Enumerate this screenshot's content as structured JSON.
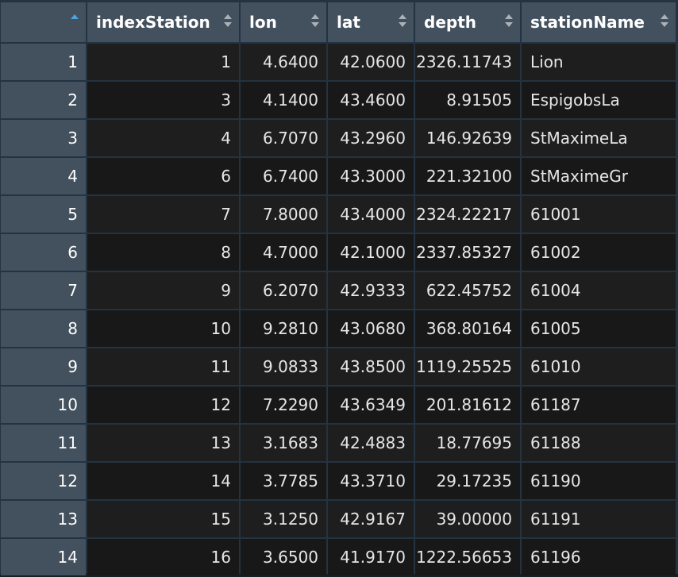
{
  "table": {
    "columns": [
      {
        "key": "rownum",
        "label": "",
        "sorted": "asc"
      },
      {
        "key": "indexStation",
        "label": "indexStation"
      },
      {
        "key": "lon",
        "label": "lon"
      },
      {
        "key": "lat",
        "label": "lat"
      },
      {
        "key": "depth",
        "label": "depth"
      },
      {
        "key": "stationName",
        "label": "stationName"
      }
    ],
    "rows": [
      {
        "rownum": "1",
        "indexStation": "1",
        "lon": "4.6400",
        "lat": "42.0600",
        "depth": "2326.11743",
        "stationName": "Lion"
      },
      {
        "rownum": "2",
        "indexStation": "3",
        "lon": "4.1400",
        "lat": "43.4600",
        "depth": "8.91505",
        "stationName": "EspigobsLa"
      },
      {
        "rownum": "3",
        "indexStation": "4",
        "lon": "6.7070",
        "lat": "43.2960",
        "depth": "146.92639",
        "stationName": "StMaximeLa"
      },
      {
        "rownum": "4",
        "indexStation": "6",
        "lon": "6.7400",
        "lat": "43.3000",
        "depth": "221.32100",
        "stationName": "StMaximeGr"
      },
      {
        "rownum": "5",
        "indexStation": "7",
        "lon": "7.8000",
        "lat": "43.4000",
        "depth": "2324.22217",
        "stationName": "61001"
      },
      {
        "rownum": "6",
        "indexStation": "8",
        "lon": "4.7000",
        "lat": "42.1000",
        "depth": "2337.85327",
        "stationName": "61002"
      },
      {
        "rownum": "7",
        "indexStation": "9",
        "lon": "6.2070",
        "lat": "42.9333",
        "depth": "622.45752",
        "stationName": "61004"
      },
      {
        "rownum": "8",
        "indexStation": "10",
        "lon": "9.2810",
        "lat": "43.0680",
        "depth": "368.80164",
        "stationName": "61005"
      },
      {
        "rownum": "9",
        "indexStation": "11",
        "lon": "9.0833",
        "lat": "43.8500",
        "depth": "1119.25525",
        "stationName": "61010"
      },
      {
        "rownum": "10",
        "indexStation": "12",
        "lon": "7.2290",
        "lat": "43.6349",
        "depth": "201.81612",
        "stationName": "61187"
      },
      {
        "rownum": "11",
        "indexStation": "13",
        "lon": "3.1683",
        "lat": "42.4883",
        "depth": "18.77695",
        "stationName": "61188"
      },
      {
        "rownum": "12",
        "indexStation": "14",
        "lon": "3.7785",
        "lat": "43.3710",
        "depth": "29.17235",
        "stationName": "61190"
      },
      {
        "rownum": "13",
        "indexStation": "15",
        "lon": "3.1250",
        "lat": "42.9167",
        "depth": "39.00000",
        "stationName": "61191"
      },
      {
        "rownum": "14",
        "indexStation": "16",
        "lon": "3.6500",
        "lat": "41.9170",
        "depth": "1222.56653",
        "stationName": "61196"
      }
    ]
  },
  "icons": {
    "sort": "sort-icon",
    "sort_active": "sort-ascending-icon"
  },
  "colors": {
    "header_bg": "#43505d",
    "grid_line": "#233342",
    "sort_active": "#4ba3e6"
  }
}
